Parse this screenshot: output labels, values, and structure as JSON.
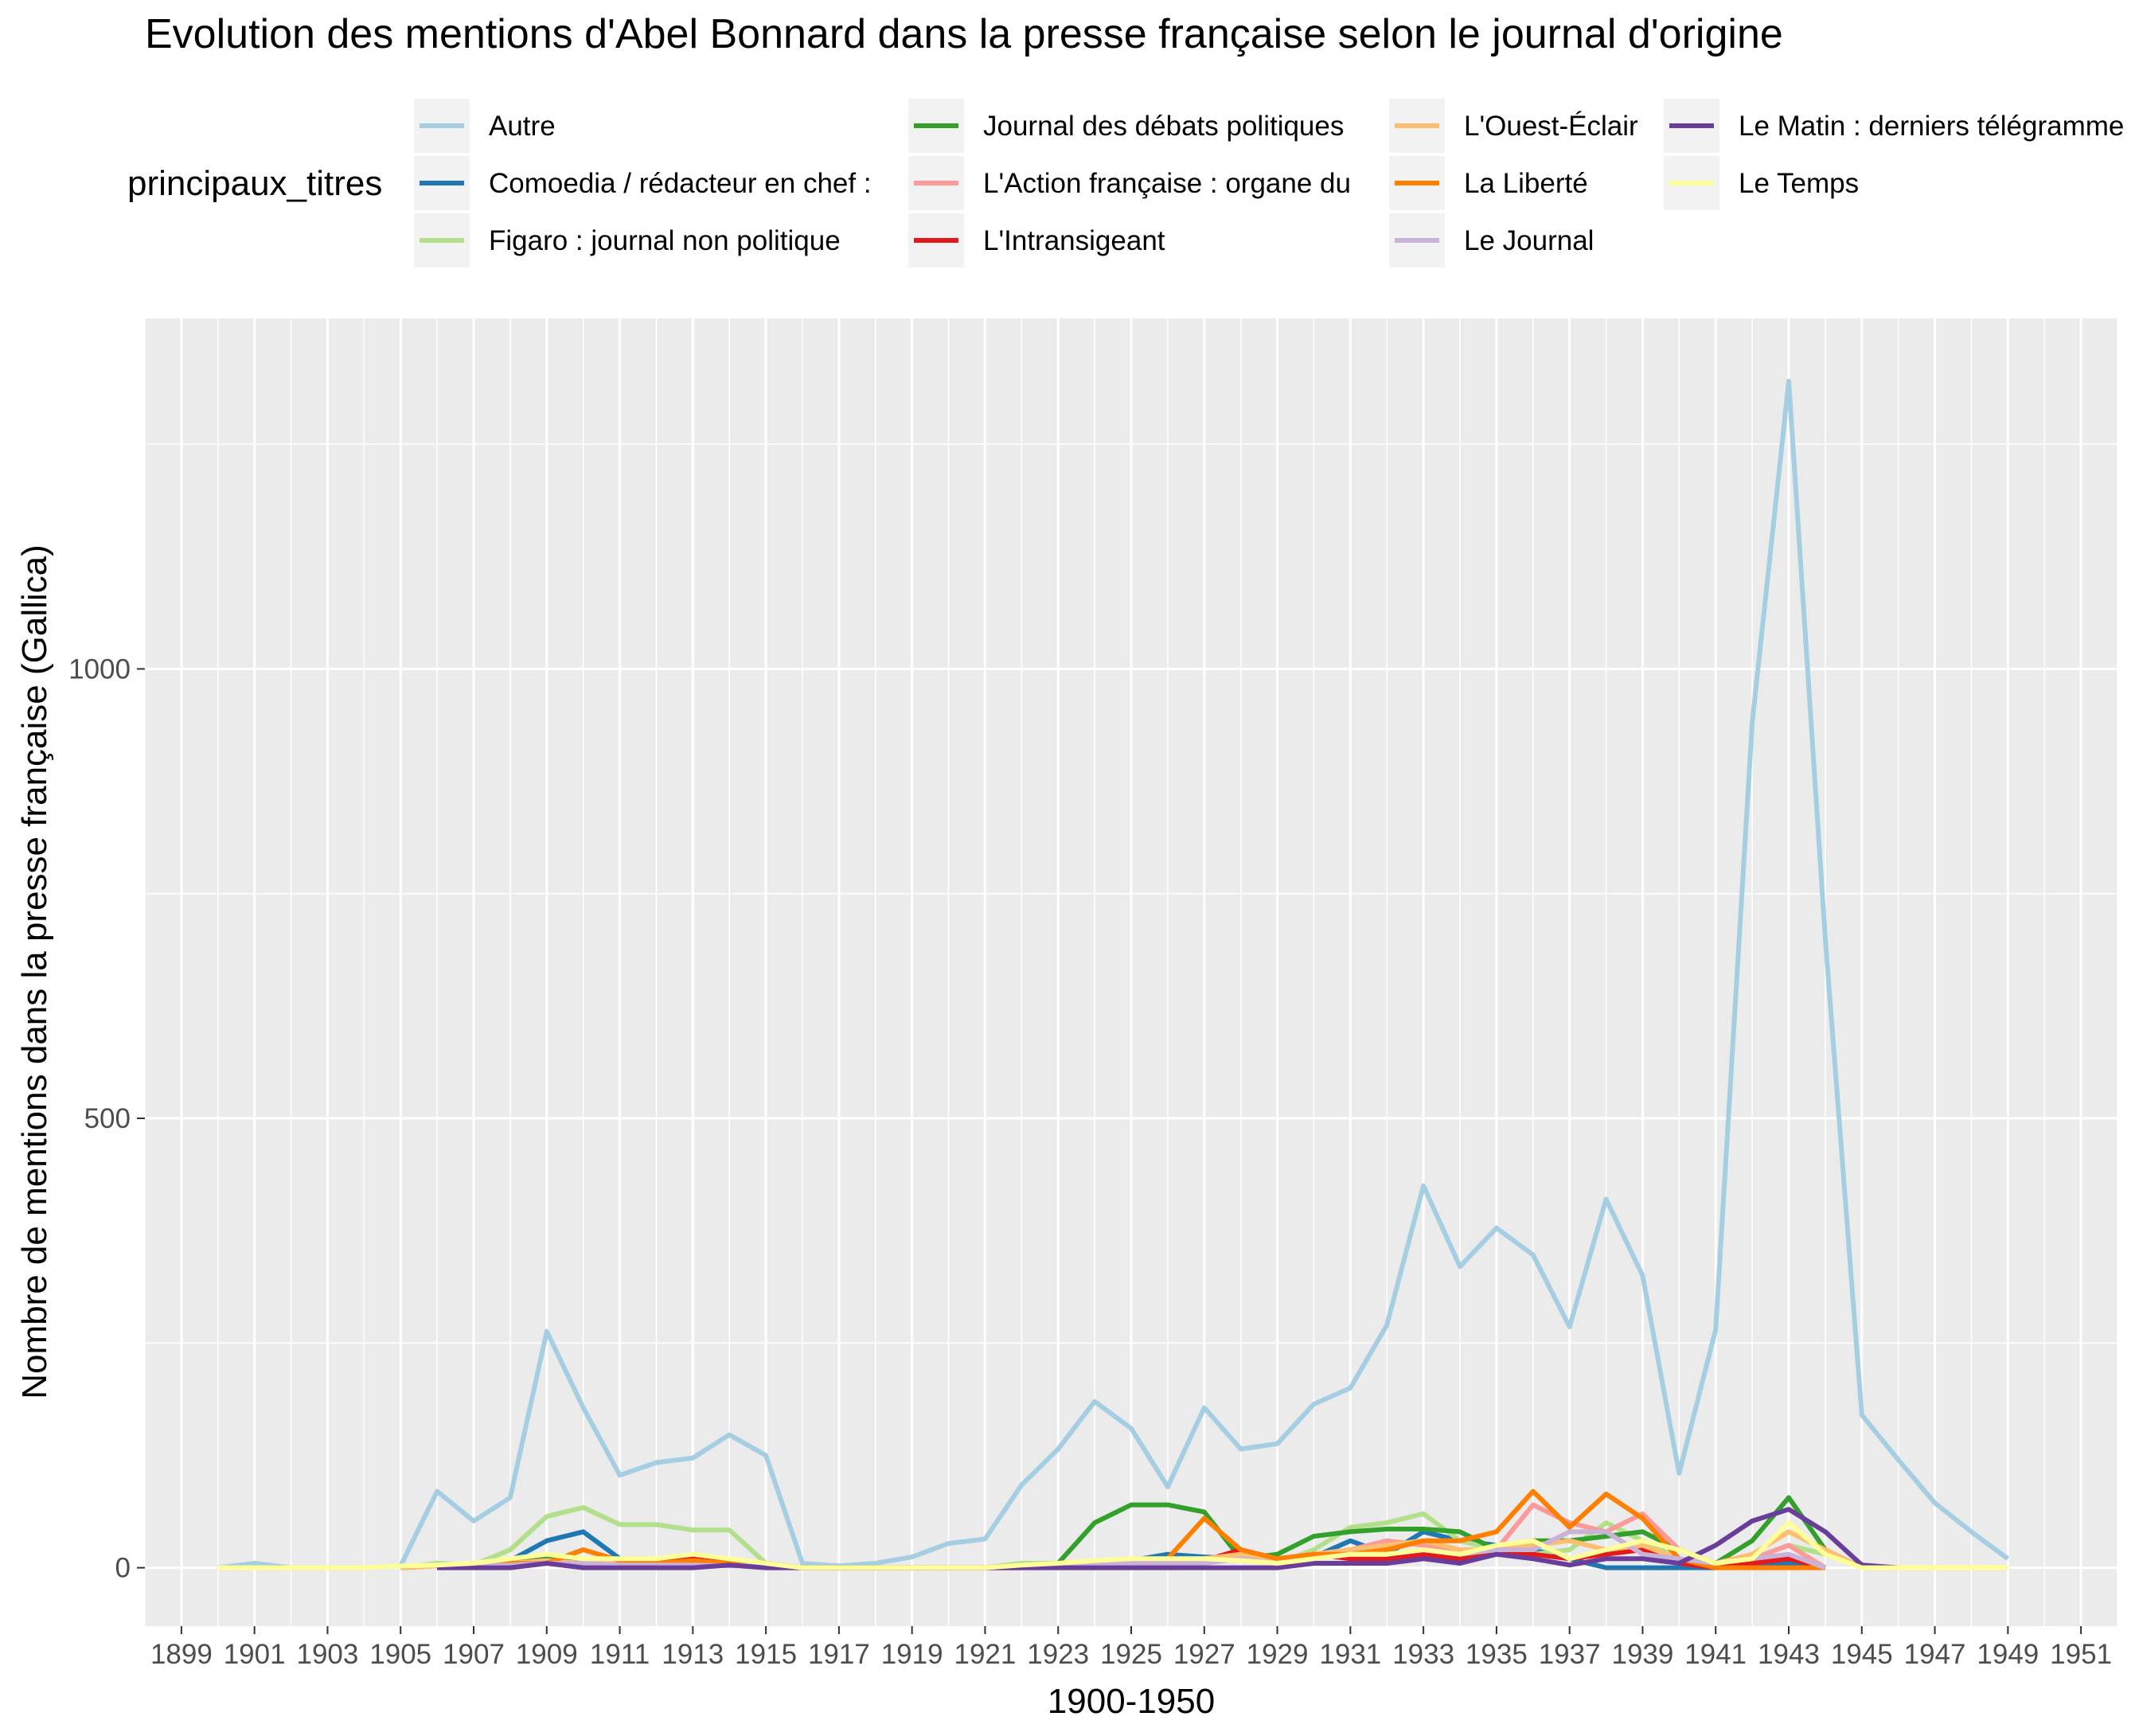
{
  "chart_data": {
    "type": "line",
    "title": "Evolution des mentions d'Abel Bonnard dans la presse française selon le journal d'origine",
    "xlabel": "1900-1950",
    "ylabel": "Nombre de mentions dans la presse française (Gallica)",
    "xlim": [
      1898,
      1952
    ],
    "ylim": [
      -65,
      1390
    ],
    "x_ticks": [
      "1899",
      "1901",
      "1903",
      "1905",
      "1907",
      "1909",
      "1911",
      "1913",
      "1915",
      "1917",
      "1919",
      "1921",
      "1923",
      "1925",
      "1927",
      "1929",
      "1931",
      "1933",
      "1935",
      "1937",
      "1939",
      "1941",
      "1943",
      "1945",
      "1947",
      "1949",
      "1951"
    ],
    "y_ticks": [
      "0",
      "500",
      "1000"
    ],
    "grid": true,
    "legend": {
      "title": "principaux_titres",
      "position": "top",
      "entries": [
        {
          "label": "Autre",
          "color": "#A6CEE3"
        },
        {
          "label": "Comoedia / rédacteur en chef :",
          "color": "#1F78B4"
        },
        {
          "label": "Figaro : journal non politique",
          "color": "#B2DF8A"
        },
        {
          "label": "Journal des débats politiques",
          "color": "#33A02C"
        },
        {
          "label": "L'Action française : organe du",
          "color": "#FB9A99"
        },
        {
          "label": "L'Intransigeant",
          "color": "#E31A1C"
        },
        {
          "label": "L'Ouest-Éclair",
          "color": "#FDBF6F"
        },
        {
          "label": "La Liberté",
          "color": "#FF7F00"
        },
        {
          "label": "Le Journal",
          "color": "#CAB2D6"
        },
        {
          "label": "Le Matin : derniers télégramme",
          "color": "#6A3D9A"
        },
        {
          "label": "Le Temps",
          "color": "#FFFF99"
        }
      ]
    },
    "series": [
      {
        "name": "Autre",
        "color": "#A6CEE3",
        "x": [
          1900,
          1901,
          1902,
          1903,
          1904,
          1905,
          1906,
          1907,
          1908,
          1909,
          1910,
          1911,
          1912,
          1913,
          1914,
          1915,
          1916,
          1917,
          1918,
          1919,
          1920,
          1921,
          1922,
          1923,
          1924,
          1925,
          1926,
          1927,
          1928,
          1929,
          1930,
          1931,
          1932,
          1933,
          1934,
          1935,
          1936,
          1937,
          1938,
          1939,
          1940,
          1941,
          1942,
          1943,
          1944,
          1945,
          1946,
          1947,
          1948,
          1949
        ],
        "y": [
          0,
          5,
          0,
          0,
          0,
          2,
          85,
          52,
          78,
          263,
          178,
          103,
          117,
          122,
          148,
          125,
          5,
          2,
          5,
          12,
          27,
          32,
          92,
          132,
          185,
          155,
          90,
          178,
          132,
          138,
          182,
          200,
          270,
          425,
          335,
          378,
          348,
          268,
          410,
          325,
          105,
          265,
          940,
          1320,
          700,
          170,
          120,
          72,
          40,
          10
        ]
      },
      {
        "name": "Comoedia / rédacteur en chef :",
        "color": "#1F78B4",
        "x": [
          1906,
          1907,
          1908,
          1909,
          1910,
          1911,
          1912,
          1913,
          1914,
          1915,
          1916,
          1917,
          1918,
          1919,
          1920,
          1921,
          1922,
          1923,
          1924,
          1925,
          1926,
          1927,
          1928,
          1929,
          1930,
          1931,
          1932,
          1933,
          1934,
          1935,
          1936,
          1937,
          1938,
          1939,
          1940,
          1941,
          1942,
          1943,
          1944
        ],
        "y": [
          0,
          3,
          8,
          30,
          40,
          10,
          8,
          5,
          3,
          2,
          0,
          0,
          0,
          0,
          0,
          0,
          2,
          3,
          5,
          8,
          15,
          12,
          10,
          8,
          12,
          30,
          15,
          40,
          30,
          25,
          20,
          10,
          0,
          0,
          0,
          0,
          5,
          5,
          0
        ]
      },
      {
        "name": "Figaro : journal non politique",
        "color": "#B2DF8A",
        "x": [
          1905,
          1906,
          1907,
          1908,
          1909,
          1910,
          1911,
          1912,
          1913,
          1914,
          1915,
          1916,
          1917,
          1918,
          1919,
          1920,
          1921,
          1922,
          1923,
          1924,
          1925,
          1926,
          1927,
          1928,
          1929,
          1930,
          1931,
          1932,
          1933,
          1934,
          1935,
          1936,
          1937,
          1938,
          1939,
          1940,
          1941,
          1942,
          1943,
          1944,
          1945
        ],
        "y": [
          0,
          5,
          3,
          20,
          57,
          67,
          48,
          48,
          42,
          42,
          5,
          0,
          0,
          0,
          0,
          0,
          0,
          5,
          5,
          5,
          10,
          8,
          10,
          8,
          5,
          20,
          45,
          50,
          60,
          30,
          20,
          15,
          20,
          50,
          30,
          10,
          5,
          10,
          25,
          15,
          0
        ]
      },
      {
        "name": "Journal des débats politiques",
        "color": "#33A02C",
        "x": [
          1905,
          1906,
          1907,
          1908,
          1909,
          1910,
          1911,
          1912,
          1913,
          1914,
          1915,
          1916,
          1917,
          1918,
          1919,
          1920,
          1921,
          1922,
          1923,
          1924,
          1925,
          1926,
          1927,
          1928,
          1929,
          1930,
          1931,
          1932,
          1933,
          1934,
          1935,
          1936,
          1937,
          1938,
          1939,
          1940,
          1941,
          1942,
          1943,
          1944,
          1945
        ],
        "y": [
          0,
          2,
          3,
          5,
          10,
          5,
          5,
          5,
          5,
          5,
          2,
          0,
          0,
          0,
          0,
          0,
          0,
          3,
          5,
          50,
          70,
          70,
          62,
          10,
          15,
          35,
          40,
          43,
          43,
          40,
          20,
          30,
          30,
          35,
          40,
          20,
          5,
          30,
          78,
          20,
          0
        ]
      },
      {
        "name": "L'Action française : organe du",
        "color": "#FB9A99",
        "x": [
          1908,
          1909,
          1910,
          1911,
          1912,
          1913,
          1914,
          1915,
          1916,
          1917,
          1918,
          1919,
          1920,
          1921,
          1922,
          1923,
          1924,
          1925,
          1926,
          1927,
          1928,
          1929,
          1930,
          1931,
          1932,
          1933,
          1934,
          1935,
          1936,
          1937,
          1938,
          1939,
          1940,
          1941,
          1942,
          1943,
          1944
        ],
        "y": [
          0,
          5,
          5,
          3,
          5,
          3,
          3,
          0,
          0,
          0,
          0,
          0,
          0,
          0,
          0,
          2,
          3,
          5,
          5,
          10,
          15,
          10,
          15,
          20,
          30,
          25,
          20,
          20,
          70,
          50,
          40,
          60,
          20,
          5,
          10,
          25,
          0
        ]
      },
      {
        "name": "L'Intransigeant",
        "color": "#E31A1C",
        "x": [
          1906,
          1907,
          1908,
          1909,
          1910,
          1911,
          1912,
          1913,
          1914,
          1915,
          1916,
          1917,
          1918,
          1919,
          1920,
          1921,
          1922,
          1923,
          1924,
          1925,
          1926,
          1927,
          1928,
          1929,
          1930,
          1931,
          1932,
          1933,
          1934,
          1935,
          1936,
          1937,
          1938,
          1939,
          1940,
          1941,
          1942,
          1943,
          1944
        ],
        "y": [
          0,
          5,
          5,
          8,
          5,
          5,
          8,
          10,
          8,
          5,
          0,
          0,
          0,
          0,
          0,
          0,
          0,
          3,
          5,
          5,
          5,
          8,
          20,
          10,
          15,
          10,
          10,
          15,
          10,
          20,
          15,
          10,
          15,
          20,
          5,
          0,
          5,
          10,
          0
        ]
      },
      {
        "name": "L'Ouest-Éclair",
        "color": "#FDBF6F",
        "x": [
          1905,
          1906,
          1907,
          1908,
          1909,
          1910,
          1911,
          1912,
          1913,
          1914,
          1915,
          1916,
          1917,
          1918,
          1919,
          1920,
          1921,
          1922,
          1923,
          1924,
          1925,
          1926,
          1927,
          1928,
          1929,
          1930,
          1931,
          1932,
          1933,
          1934,
          1935,
          1936,
          1937,
          1938,
          1939,
          1940,
          1941,
          1942,
          1943,
          1944,
          1945
        ],
        "y": [
          0,
          2,
          3,
          5,
          8,
          5,
          5,
          5,
          5,
          3,
          2,
          0,
          0,
          0,
          0,
          0,
          0,
          2,
          5,
          5,
          10,
          8,
          10,
          15,
          10,
          15,
          20,
          25,
          30,
          20,
          20,
          25,
          30,
          20,
          25,
          10,
          5,
          15,
          40,
          20,
          0
        ]
      },
      {
        "name": "La Liberté",
        "color": "#FF7F00",
        "x": [
          1906,
          1907,
          1908,
          1909,
          1910,
          1911,
          1912,
          1913,
          1914,
          1915,
          1916,
          1917,
          1918,
          1919,
          1920,
          1921,
          1922,
          1923,
          1924,
          1925,
          1926,
          1927,
          1928,
          1929,
          1930,
          1931,
          1932,
          1933,
          1934,
          1935,
          1936,
          1937,
          1938,
          1939,
          1940,
          1941,
          1942,
          1943,
          1944
        ],
        "y": [
          0,
          2,
          5,
          5,
          20,
          8,
          5,
          8,
          5,
          3,
          0,
          0,
          0,
          0,
          0,
          0,
          2,
          3,
          5,
          8,
          10,
          55,
          20,
          10,
          15,
          15,
          20,
          30,
          30,
          40,
          85,
          45,
          82,
          55,
          10,
          0,
          0,
          0,
          0
        ]
      },
      {
        "name": "Le Journal",
        "color": "#CAB2D6",
        "x": [
          1906,
          1907,
          1908,
          1909,
          1910,
          1911,
          1912,
          1913,
          1914,
          1915,
          1916,
          1917,
          1918,
          1919,
          1920,
          1921,
          1922,
          1923,
          1924,
          1925,
          1926,
          1927,
          1928,
          1929,
          1930,
          1931,
          1932,
          1933,
          1934,
          1935,
          1936,
          1937,
          1938,
          1939,
          1940,
          1941,
          1942,
          1943,
          1944
        ],
        "y": [
          0,
          2,
          3,
          5,
          5,
          3,
          3,
          3,
          2,
          2,
          0,
          0,
          0,
          0,
          0,
          0,
          2,
          3,
          5,
          5,
          5,
          5,
          10,
          5,
          10,
          15,
          15,
          20,
          15,
          20,
          20,
          40,
          40,
          15,
          10,
          5,
          10,
          15,
          0
        ]
      },
      {
        "name": "Le Matin : derniers télégramme",
        "color": "#6A3D9A",
        "x": [
          1906,
          1907,
          1908,
          1909,
          1910,
          1911,
          1912,
          1913,
          1914,
          1915,
          1916,
          1917,
          1918,
          1919,
          1920,
          1921,
          1922,
          1923,
          1924,
          1925,
          1926,
          1927,
          1928,
          1929,
          1930,
          1931,
          1932,
          1933,
          1934,
          1935,
          1936,
          1937,
          1938,
          1939,
          1940,
          1941,
          1942,
          1943,
          1944,
          1945,
          1946
        ],
        "y": [
          0,
          0,
          0,
          5,
          0,
          0,
          0,
          0,
          3,
          0,
          0,
          0,
          0,
          0,
          0,
          0,
          0,
          0,
          0,
          0,
          0,
          0,
          0,
          0,
          5,
          5,
          5,
          10,
          5,
          15,
          10,
          3,
          10,
          10,
          5,
          25,
          52,
          65,
          40,
          3,
          0
        ]
      },
      {
        "name": "Le Temps",
        "color": "#FFFF99",
        "x": [
          1900,
          1901,
          1902,
          1903,
          1904,
          1905,
          1906,
          1907,
          1908,
          1909,
          1910,
          1911,
          1912,
          1913,
          1914,
          1915,
          1916,
          1917,
          1918,
          1919,
          1920,
          1921,
          1922,
          1923,
          1924,
          1925,
          1926,
          1927,
          1928,
          1929,
          1930,
          1931,
          1932,
          1933,
          1934,
          1935,
          1936,
          1937,
          1938,
          1939,
          1940,
          1941,
          1942,
          1943,
          1944,
          1945,
          1946,
          1947,
          1948,
          1949
        ],
        "y": [
          0,
          0,
          0,
          0,
          0,
          2,
          3,
          5,
          10,
          15,
          10,
          10,
          10,
          15,
          10,
          5,
          0,
          0,
          0,
          0,
          0,
          0,
          3,
          5,
          8,
          10,
          10,
          10,
          8,
          5,
          10,
          15,
          15,
          20,
          15,
          25,
          30,
          10,
          20,
          30,
          20,
          5,
          10,
          50,
          15,
          0,
          0,
          0,
          0,
          0
        ]
      }
    ]
  }
}
